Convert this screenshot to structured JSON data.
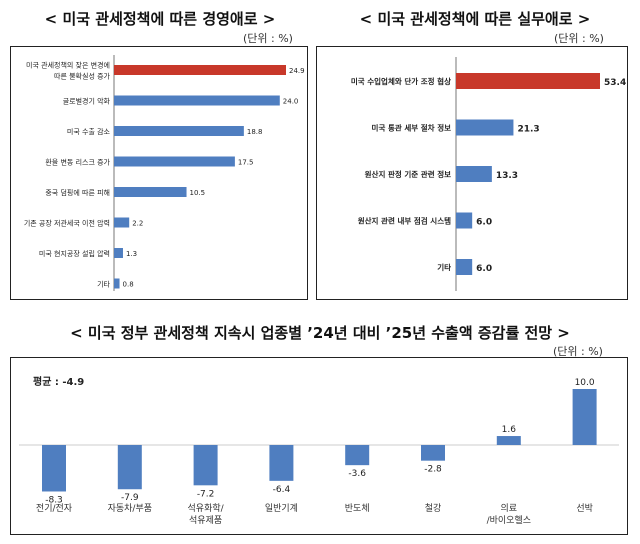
{
  "chart_data": [
    {
      "type": "bar",
      "orientation": "horizontal",
      "title": "< 미국 관세정책에 따른 경영애로 >",
      "unit": "(단위 : %)",
      "categories": [
        "미국 관세정책의 잦은 변경에 따른 불확실성 증가",
        "글로벌경기 악화",
        "미국 수출 감소",
        "환율 변동 리스크 증가",
        "중국 덤핑에 따른 피해",
        "기존 공장 저관세국 이전 압력",
        "미국 현지공장 설립 압력",
        "기타"
      ],
      "values": [
        24.9,
        24.0,
        18.8,
        17.5,
        10.5,
        2.2,
        1.3,
        0.8
      ],
      "value_labels": [
        "24.9",
        "24.0",
        "18.8",
        "17.5",
        "10.5",
        "2.2",
        "1.3",
        "0.8"
      ],
      "highlight_index": 0,
      "colors": {
        "bar": "#4f7ec0",
        "highlight": "#c8382a"
      }
    },
    {
      "type": "bar",
      "orientation": "horizontal",
      "title": "< 미국 관세정책에 따른 실무애로 >",
      "unit": "(단위 : %)",
      "categories": [
        "미국 수입업체와 단가 조정 협상",
        "미국 통관 세부 절차 정보",
        "원산지 판정 기준 관련 정보",
        "원산지 관련 내부 점검 시스템",
        "기타"
      ],
      "values": [
        53.4,
        21.3,
        13.3,
        6.0,
        6.0
      ],
      "value_labels": [
        "53.4",
        "21.3",
        "13.3",
        "6.0",
        "6.0"
      ],
      "highlight_index": 0,
      "colors": {
        "bar": "#4f7ec0",
        "highlight": "#c8382a"
      }
    },
    {
      "type": "bar",
      "orientation": "vertical",
      "title": "< 미국 정부 관세정책 지속시 업종별 ’24년 대비 ’25년 수출액 증감률 전망 >",
      "unit": "(단위 : %)",
      "annotation": "평균 : -4.9",
      "categories": [
        [
          "전기/전자"
        ],
        [
          "자동차/부품"
        ],
        [
          "석유화학/",
          "석유제품"
        ],
        [
          "일반기계"
        ],
        [
          "반도체"
        ],
        [
          "철강"
        ],
        [
          "의료",
          "/바이오헬스"
        ],
        [
          "선박"
        ]
      ],
      "values": [
        -8.3,
        -7.9,
        -7.2,
        -6.4,
        -3.6,
        -2.8,
        1.6,
        10.0
      ],
      "value_labels": [
        "-8.3",
        "-7.9",
        "-7.2",
        "-6.4",
        "-3.6",
        "-2.8",
        "1.6",
        "10.0"
      ],
      "colors": {
        "bar": "#4f7ec0",
        "zero_line": "#cccccc"
      }
    }
  ]
}
